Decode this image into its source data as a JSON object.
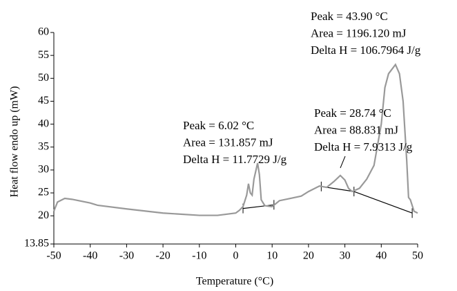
{
  "chart_data": {
    "type": "line",
    "x_label": "Temperature (°C)",
    "y_label": "Heat flow endo up (mW)",
    "xlim": [
      -50,
      50
    ],
    "xticks": [
      -50,
      -40,
      -30,
      -20,
      -10,
      0,
      10,
      20,
      30,
      40,
      50
    ],
    "ylim": [
      13.85,
      60
    ],
    "yticks": [
      13.85,
      20,
      25,
      30,
      35,
      40,
      45,
      50,
      55,
      60
    ],
    "series": [
      {
        "color": "#999999",
        "x": [
          -50,
          -49,
          -47,
          -45,
          -40,
          -38,
          -30,
          -20,
          -10,
          -5,
          0,
          1,
          2,
          3,
          3.5,
          4,
          4.5,
          5,
          6,
          6.5,
          7,
          8,
          10,
          12,
          15,
          18,
          20,
          23,
          25,
          27,
          28.74,
          30,
          31,
          32,
          34,
          36,
          38,
          40,
          41,
          42,
          43.9,
          45,
          46,
          47,
          47.5,
          48,
          49,
          50
        ],
        "values": [
          21,
          23,
          23.8,
          23.6,
          22.8,
          22.3,
          21.5,
          20.6,
          20.1,
          20.1,
          20.6,
          21.2,
          22,
          24.5,
          27,
          25,
          24.5,
          28,
          31.5,
          29,
          23.5,
          22.2,
          22,
          23.3,
          23.8,
          24.3,
          25.3,
          26.5,
          26.2,
          27.5,
          28.8,
          27.8,
          26,
          25.3,
          26,
          28,
          31,
          40,
          48,
          51,
          53,
          51,
          45,
          32,
          24,
          23.5,
          21,
          20.6
        ]
      }
    ],
    "baselines": [
      {
        "x": [
          2,
          10.5
        ],
        "values": [
          21.6,
          22.4
        ]
      },
      {
        "x": [
          23.5,
          32.5,
          48.5
        ],
        "values": [
          26.4,
          25.3,
          20.6
        ]
      }
    ],
    "annotations": [
      {
        "lines": [
          "Peak = 43.90 °C",
          "Area = 1196.120 mJ",
          "Delta H = 106.7964 J/g"
        ]
      },
      {
        "lines": [
          "Peak = 28.74 °C",
          "Area = 88.831 mJ",
          "Delta H = 7.9313 J/g"
        ]
      },
      {
        "lines": [
          "Peak = 6.02 °C",
          "Area = 131.857 mJ",
          "Delta H = 11.7729 J/g"
        ]
      }
    ]
  }
}
